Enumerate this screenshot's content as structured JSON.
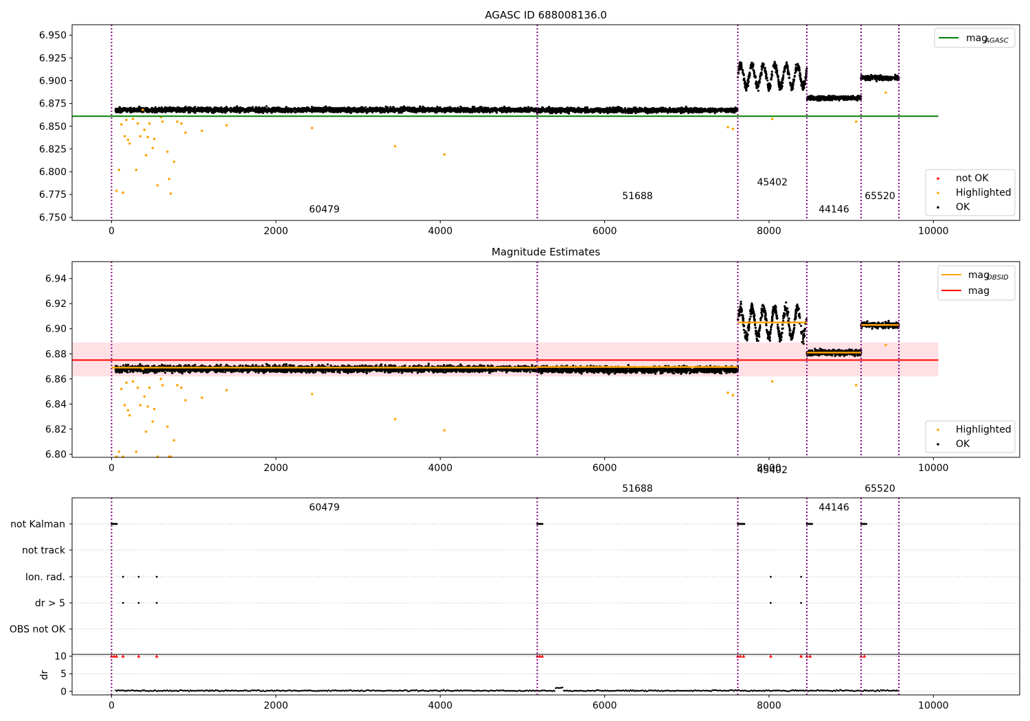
{
  "chart_data": [
    {
      "type": "scatter",
      "title": "AGASC ID 688008136.0",
      "xlim": [
        -480,
        11050
      ],
      "ylim": [
        6.7465,
        6.9615
      ],
      "x_ticks": [
        0,
        2000,
        4000,
        6000,
        8000,
        10000
      ],
      "x_tick_labels": [
        "0",
        "2000",
        "4000",
        "6000",
        "8000",
        "10000"
      ],
      "y_ticks": [
        6.75,
        6.775,
        6.8,
        6.825,
        6.85,
        6.875,
        6.9,
        6.925,
        6.95
      ],
      "y_tick_labels": [
        "6.750",
        "6.775",
        "6.800",
        "6.825",
        "6.850",
        "6.875",
        "6.900",
        "6.925",
        "6.950"
      ],
      "vlines": [
        0,
        5180,
        7620,
        8460,
        9120,
        9580
      ],
      "segments": [
        {
          "obsid": "60479",
          "x": [
            50,
            5180
          ],
          "level": 6.868,
          "spread": 0.0045,
          "x_label": 2590,
          "y_label": 6.755
        },
        {
          "obsid": "51688",
          "x": [
            5180,
            7620
          ],
          "level": 6.8675,
          "spread": 0.0045,
          "x_label": 6400,
          "y_label": 6.77
        },
        {
          "obsid": "45402",
          "x": [
            7620,
            8460
          ],
          "level": 6.905,
          "spread": 0.012,
          "x_label": 8040,
          "y_label": 6.785
        },
        {
          "obsid": "44146",
          "x": [
            8460,
            9120
          ],
          "level": 6.881,
          "spread": 0.004,
          "x_label": 8790,
          "y_label": 6.755
        },
        {
          "obsid": "65520",
          "x": [
            9120,
            9580
          ],
          "level": 6.903,
          "spread": 0.004,
          "x_label": 9350,
          "y_label": 6.77
        }
      ],
      "reference_line": {
        "name": "mag_AGASC",
        "y": 6.861,
        "x": [
          -480,
          10060
        ],
        "color": "#008000"
      },
      "highlighted_outliers": [
        [
          60,
          6.779
        ],
        [
          90,
          6.802
        ],
        [
          120,
          6.852
        ],
        [
          140,
          6.777
        ],
        [
          160,
          6.839
        ],
        [
          180,
          6.857
        ],
        [
          200,
          6.835
        ],
        [
          220,
          6.831
        ],
        [
          260,
          6.858
        ],
        [
          300,
          6.802
        ],
        [
          320,
          6.853
        ],
        [
          350,
          6.839
        ],
        [
          380,
          6.868
        ],
        [
          400,
          6.846
        ],
        [
          420,
          6.818
        ],
        [
          440,
          6.838
        ],
        [
          460,
          6.853
        ],
        [
          500,
          6.826
        ],
        [
          520,
          6.836
        ],
        [
          560,
          6.785
        ],
        [
          600,
          6.86
        ],
        [
          620,
          6.855
        ],
        [
          680,
          6.822
        ],
        [
          700,
          6.792
        ],
        [
          720,
          6.776
        ],
        [
          760,
          6.811
        ],
        [
          800,
          6.855
        ],
        [
          850,
          6.853
        ],
        [
          900,
          6.843
        ],
        [
          1100,
          6.845
        ],
        [
          1400,
          6.851
        ],
        [
          2440,
          6.848
        ],
        [
          3450,
          6.828
        ],
        [
          4050,
          6.819
        ],
        [
          7500,
          6.849
        ],
        [
          7560,
          6.847
        ],
        [
          8040,
          6.858
        ],
        [
          9060,
          6.855
        ],
        [
          9420,
          6.887
        ]
      ],
      "legend": [
        {
          "label": "mag",
          "subscript": "AGASC",
          "kind": "line",
          "color": "#008000"
        }
      ],
      "legend2": [
        {
          "label": "not OK",
          "kind": "dot",
          "color": "#ff0000"
        },
        {
          "label": "Highlighted",
          "kind": "dot",
          "color": "#ffa500"
        },
        {
          "label": "OK",
          "kind": "dot",
          "color": "#000000"
        }
      ]
    },
    {
      "type": "scatter",
      "title": "Magnitude Estimates",
      "xlim": [
        -480,
        11050
      ],
      "ylim": [
        6.7975,
        6.9535
      ],
      "x_ticks": [
        0,
        2000,
        4000,
        6000,
        8000,
        10000
      ],
      "x_tick_labels": [
        "0",
        "2000",
        "4000",
        "6000",
        "8000",
        "10000"
      ],
      "y_ticks": [
        6.8,
        6.82,
        6.84,
        6.86,
        6.88,
        6.9,
        6.92,
        6.94
      ],
      "y_tick_labels": [
        "6.80",
        "6.82",
        "6.84",
        "6.86",
        "6.88",
        "6.90",
        "6.92",
        "6.94"
      ],
      "vlines": [
        0,
        5180,
        7620,
        8460,
        9120,
        9580
      ],
      "mag": {
        "y": 6.875,
        "band": [
          6.862,
          6.889
        ],
        "x": [
          -480,
          10060
        ],
        "color": "#ff0000"
      },
      "obsid_means": [
        {
          "x": [
            0,
            5180
          ],
          "y": 6.869
        },
        {
          "x": [
            5180,
            7620
          ],
          "y": 6.8695
        },
        {
          "x": [
            7620,
            8460
          ],
          "y": 6.905
        },
        {
          "x": [
            8460,
            9120
          ],
          "y": 6.881
        },
        {
          "x": [
            9120,
            9580
          ],
          "y": 6.903
        }
      ],
      "legend": [
        {
          "label": "mag",
          "subscript": "OBSID",
          "kind": "line",
          "color": "#ffa500"
        },
        {
          "label": "mag",
          "kind": "line",
          "color": "#ff0000"
        }
      ],
      "legend2": [
        {
          "label": "Highlighted",
          "kind": "dot",
          "color": "#ffa500"
        },
        {
          "label": "OK",
          "kind": "dot",
          "color": "#000000"
        }
      ]
    },
    {
      "type": "scatter",
      "xlim": [
        -480,
        11050
      ],
      "flag_rows": [
        "not Kalman",
        "not track",
        "Ion. rad.",
        "dr > 5",
        "OBS not OK"
      ],
      "flags": {
        "not Kalman": [
          [
            0,
            70
          ],
          [
            5180,
            5250
          ],
          [
            7620,
            7700
          ],
          [
            8460,
            8530
          ],
          [
            9120,
            9190
          ]
        ],
        "Ion. rad.": [
          140,
          330,
          550,
          8020,
          8390
        ],
        "dr > 5": [
          140,
          330,
          550,
          8020,
          8390
        ]
      },
      "dr_panel": {
        "ylabel": "dr",
        "ylim": [
          -1,
          10.5
        ],
        "y_ticks": [
          0,
          5,
          10
        ],
        "y_tick_labels": [
          "0",
          "5",
          "10"
        ],
        "capped_points": [
          0,
          30,
          60,
          140,
          330,
          550,
          5180,
          5210,
          5240,
          7620,
          7650,
          7690,
          8020,
          8390,
          8460,
          8500,
          9120,
          9160
        ],
        "baseline": 0.2
      },
      "x_ticks": [
        0,
        2000,
        4000,
        6000,
        8000,
        10000
      ],
      "x_tick_labels": [
        "0",
        "2000",
        "4000",
        "6000",
        "8000",
        "10000"
      ]
    }
  ]
}
